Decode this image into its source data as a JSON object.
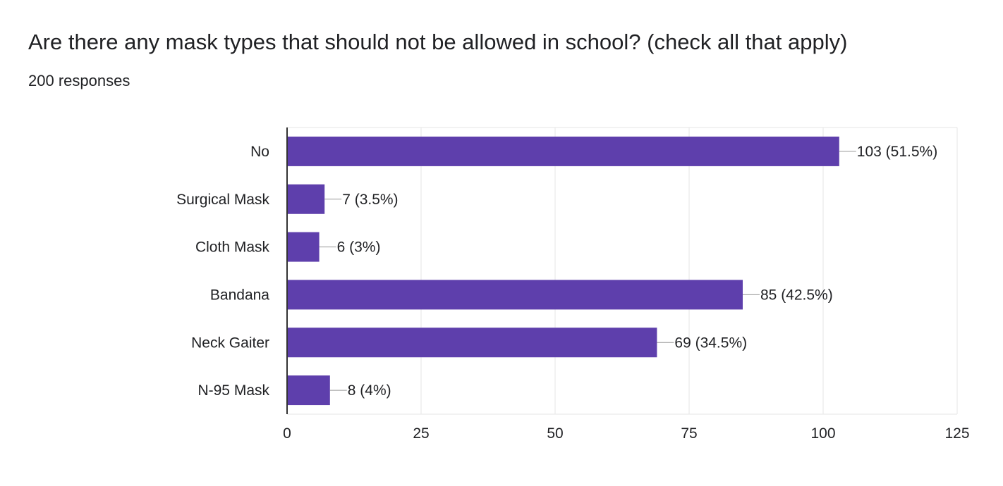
{
  "question": {
    "title": "Are there any mask types that should not be allowed in school? (check all that apply)",
    "response_count": "200 responses"
  },
  "colors": {
    "bar": "#5e3fac",
    "grid": "#e6e6e6",
    "axis": "#333333",
    "connector": "#999999",
    "text": "#202124"
  },
  "chart_data": {
    "type": "bar",
    "orientation": "horizontal",
    "categories": [
      "No",
      "Surgical Mask",
      "Cloth Mask",
      "Bandana",
      "Neck Gaiter",
      "N-95 Mask"
    ],
    "values": [
      103,
      7,
      6,
      85,
      69,
      8
    ],
    "data_labels": [
      "103 (51.5%)",
      "7 (3.5%)",
      "6 (3%)",
      "85 (42.5%)",
      "69 (34.5%)",
      "8 (4%)"
    ],
    "xlim": [
      0,
      125
    ],
    "xticks": [
      0,
      25,
      50,
      75,
      100,
      125
    ],
    "grid": true,
    "legend": "none"
  }
}
